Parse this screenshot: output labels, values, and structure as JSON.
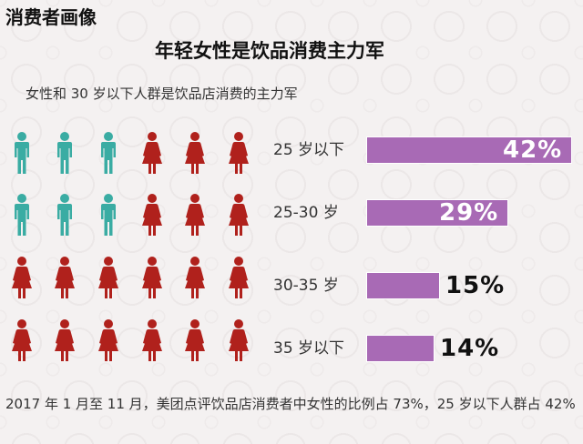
{
  "header": {
    "page_label": "消费者画像",
    "title": "年轻女性是饮品消费主力军",
    "subtitle": "女性和 30 岁以下人群是饮品店消费的主力军"
  },
  "footnote": "2017 年 1 月至 11 月，美团点评饮品店消费者中女性的比例占 73%，25 岁以下人群占 42%",
  "colors": {
    "male": "#3aaca3",
    "female": "#b0211c",
    "bar": "#a86ab5",
    "bar_border": "#ffffff",
    "value_inside": "#ffffff",
    "value_outside": "#111111"
  },
  "icons": {
    "male": "male-person-icon",
    "female": "female-person-icon",
    "rows": [
      [
        "male",
        "male",
        "male",
        "female",
        "female",
        "female"
      ],
      [
        "male",
        "male",
        "male",
        "female",
        "female",
        "female"
      ],
      [
        "female",
        "female",
        "female",
        "female",
        "female",
        "female"
      ],
      [
        "female",
        "female",
        "female",
        "female",
        "female",
        "female"
      ]
    ]
  },
  "chart_data": {
    "type": "bar",
    "orientation": "horizontal",
    "categories": [
      "25 岁以下",
      "25-30 岁",
      "30-35 岁",
      "35 岁以下"
    ],
    "values": [
      42,
      29,
      15,
      14
    ],
    "value_labels": [
      "42%",
      "29%",
      "15%",
      "14%"
    ],
    "xlim": [
      0,
      42
    ],
    "title": "年轻女性是饮品消费主力军",
    "grid": false
  }
}
